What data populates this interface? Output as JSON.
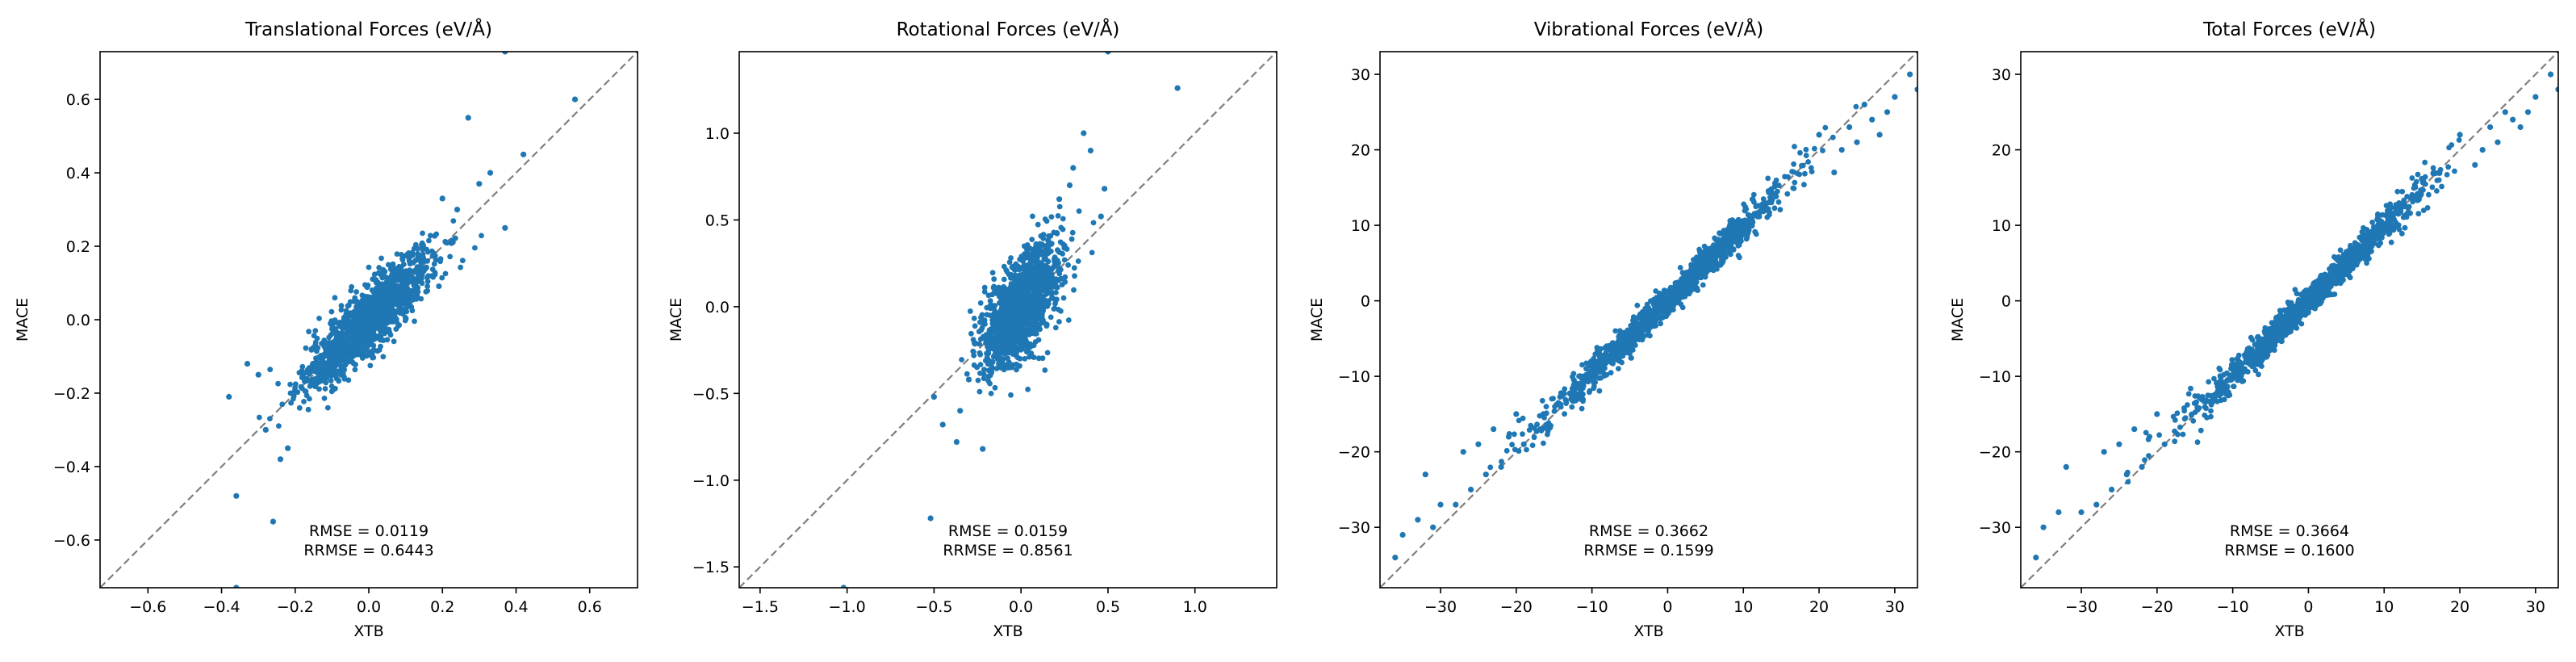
{
  "figure": {
    "marker_color": "#1f77b4",
    "diagonal_color": "#7f7f7f"
  },
  "chart_data": [
    {
      "type": "scatter",
      "title": "Translational Forces (eV/Å)",
      "xlabel": "XTB",
      "ylabel": "MACE",
      "xlim": [
        -0.73,
        0.73
      ],
      "ylim": [
        -0.73,
        0.73
      ],
      "xticks": [
        -0.6,
        -0.4,
        -0.2,
        0.0,
        0.2,
        0.4,
        0.6
      ],
      "xtick_labels": [
        "−0.6",
        "−0.4",
        "−0.2",
        "0.0",
        "0.2",
        "0.4",
        "0.6"
      ],
      "yticks": [
        -0.6,
        -0.4,
        -0.2,
        0.0,
        0.2,
        0.4,
        0.6
      ],
      "ytick_labels": [
        "−0.6",
        "−0.4",
        "−0.2",
        "0.0",
        "0.2",
        "0.4",
        "0.6"
      ],
      "rmse_text": "RMSE = 0.0119",
      "rrmse_text": "RRMSE = 0.6443",
      "diagonal": true,
      "points": [
        [
          0.37,
          0.73
        ],
        [
          0.56,
          0.6
        ],
        [
          0.27,
          0.55
        ],
        [
          0.42,
          0.45
        ],
        [
          0.37,
          0.25
        ],
        [
          -0.38,
          -0.21
        ],
        [
          -0.36,
          -0.48
        ],
        [
          -0.26,
          -0.55
        ],
        [
          -0.24,
          -0.38
        ],
        [
          -0.33,
          -0.12
        ],
        [
          -0.22,
          -0.35
        ],
        [
          -0.28,
          -0.3
        ],
        [
          0.3,
          0.37
        ],
        [
          -0.36,
          -0.73
        ],
        [
          0.33,
          0.4
        ],
        [
          -0.3,
          -0.15
        ],
        [
          0.24,
          0.3
        ],
        [
          0.2,
          0.33
        ]
      ]
    },
    {
      "type": "scatter",
      "title": "Rotational Forces (eV/Å)",
      "xlabel": "XTB",
      "ylabel": "MACE",
      "xlim": [
        -1.62,
        1.47
      ],
      "ylim": [
        -1.62,
        1.47
      ],
      "xticks": [
        -1.5,
        -1.0,
        -0.5,
        0.0,
        0.5,
        1.0
      ],
      "xtick_labels": [
        "−1.5",
        "−1.0",
        "−0.5",
        "0.0",
        "0.5",
        "1.0"
      ],
      "yticks": [
        -1.5,
        -1.0,
        -0.5,
        0.0,
        0.5,
        1.0
      ],
      "ytick_labels": [
        "−1.5",
        "−1.0",
        "−0.5",
        "0.0",
        "0.5",
        "1.0"
      ],
      "rmse_text": "RMSE = 0.0159",
      "rrmse_text": "RRMSE = 0.8561",
      "diagonal": true,
      "points": [
        [
          0.5,
          1.47
        ],
        [
          0.9,
          1.26
        ],
        [
          0.36,
          1.0
        ],
        [
          0.4,
          0.9
        ],
        [
          -0.52,
          -1.22
        ],
        [
          -1.02,
          -1.62
        ],
        [
          -0.45,
          -0.68
        ],
        [
          -0.22,
          -0.82
        ],
        [
          -0.37,
          -0.78
        ],
        [
          -0.5,
          -0.52
        ],
        [
          -0.35,
          -0.6
        ],
        [
          0.3,
          0.8
        ],
        [
          0.46,
          0.52
        ],
        [
          0.48,
          0.68
        ],
        [
          -0.3,
          -0.42
        ],
        [
          0.22,
          0.62
        ],
        [
          0.28,
          0.7
        ]
      ]
    },
    {
      "type": "scatter",
      "title": "Vibrational Forces (eV/Å)",
      "xlabel": "XTB",
      "ylabel": "MACE",
      "xlim": [
        -38,
        33
      ],
      "ylim": [
        -38,
        33
      ],
      "xticks": [
        -30,
        -20,
        -10,
        0,
        10,
        20,
        30
      ],
      "xtick_labels": [
        "−30",
        "−20",
        "−10",
        "0",
        "10",
        "20",
        "30"
      ],
      "yticks": [
        -30,
        -20,
        -10,
        0,
        10,
        20,
        30
      ],
      "ytick_labels": [
        "−30",
        "−20",
        "−10",
        "0",
        "10",
        "20",
        "30"
      ],
      "rmse_text": "RMSE = 0.3662",
      "rrmse_text": "RRMSE = 0.1599",
      "diagonal": true,
      "points": [
        [
          -36,
          -34
        ],
        [
          -35,
          -31
        ],
        [
          -33,
          -29
        ],
        [
          -31,
          -30
        ],
        [
          -30,
          -27
        ],
        [
          -32,
          -23
        ],
        [
          -28,
          -27
        ],
        [
          -26,
          -25
        ],
        [
          -24,
          -23
        ],
        [
          -22,
          -22
        ],
        [
          -21,
          -18
        ],
        [
          -19,
          -19
        ],
        [
          32,
          30
        ],
        [
          33,
          28
        ],
        [
          30,
          27
        ],
        [
          29,
          25
        ],
        [
          28,
          22
        ],
        [
          26,
          26
        ],
        [
          24,
          23
        ],
        [
          22,
          17
        ],
        [
          23,
          20
        ],
        [
          20,
          22
        ],
        [
          -27,
          -20
        ],
        [
          -25,
          -19
        ],
        [
          -20,
          -15
        ],
        [
          -23,
          -17
        ],
        [
          25,
          21
        ],
        [
          27,
          24
        ]
      ]
    },
    {
      "type": "scatter",
      "title": "Total Forces (eV/Å)",
      "xlabel": "XTB",
      "ylabel": "MACE",
      "xlim": [
        -38,
        33
      ],
      "ylim": [
        -38,
        33
      ],
      "xticks": [
        -30,
        -20,
        -10,
        0,
        10,
        20,
        30
      ],
      "xtick_labels": [
        "−30",
        "−20",
        "−10",
        "0",
        "10",
        "20",
        "30"
      ],
      "yticks": [
        -30,
        -20,
        -10,
        0,
        10,
        20,
        30
      ],
      "ytick_labels": [
        "−30",
        "−20",
        "−10",
        "0",
        "10",
        "20",
        "30"
      ],
      "rmse_text": "RMSE = 0.3664",
      "rrmse_text": "RRMSE = 0.1600",
      "diagonal": true,
      "points": [
        [
          -36,
          -34
        ],
        [
          -35,
          -30
        ],
        [
          -33,
          -28
        ],
        [
          -32,
          -22
        ],
        [
          -30,
          -28
        ],
        [
          -28,
          -27
        ],
        [
          -26,
          -25
        ],
        [
          -24,
          -23
        ],
        [
          -22,
          -22
        ],
        [
          -21,
          -18
        ],
        [
          -19,
          -19
        ],
        [
          32,
          30
        ],
        [
          33,
          28
        ],
        [
          30,
          27
        ],
        [
          29,
          25
        ],
        [
          28,
          23
        ],
        [
          26,
          25
        ],
        [
          24,
          23
        ],
        [
          22,
          18
        ],
        [
          23,
          20
        ],
        [
          20,
          22
        ],
        [
          -27,
          -20
        ],
        [
          -25,
          -19
        ],
        [
          -20,
          -15
        ],
        [
          -23,
          -17
        ],
        [
          25,
          21
        ],
        [
          27,
          24
        ]
      ]
    }
  ]
}
